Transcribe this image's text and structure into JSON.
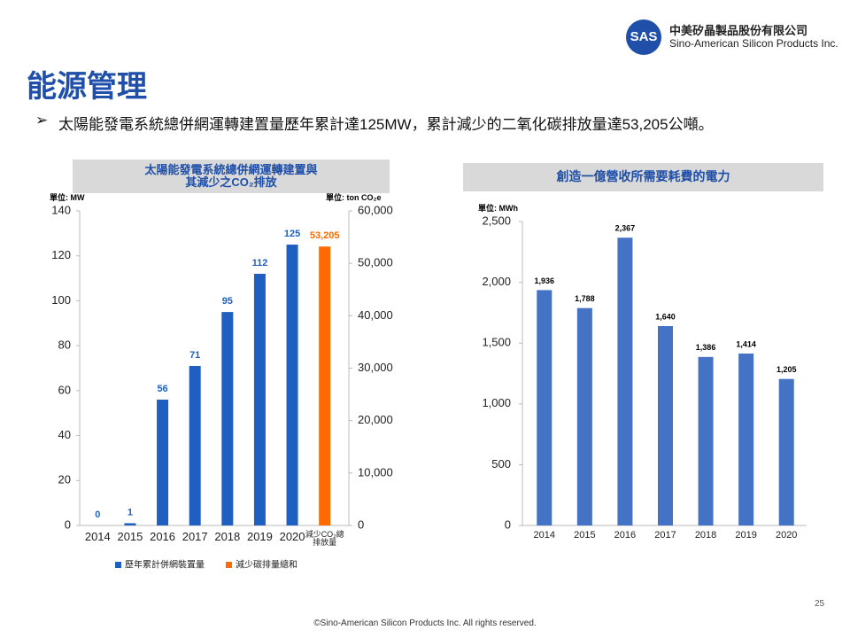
{
  "header": {
    "logo": "SAS",
    "company_zh": "中美矽晶製品股份有限公司",
    "company_en": "Sino-American Silicon Products Inc.",
    "title": "能源管理",
    "bullet": "太陽能發電系統總併網運轉建置量歷年累計達125MW，累計減少的二氧化碳排放量達53,205公噸。"
  },
  "chart_data": [
    {
      "type": "bar",
      "title": [
        "太陽能發電系統總併網運轉建置與",
        "其減少之CO₂排放"
      ],
      "y_unit": "單位: MW",
      "y2_unit": "單位: ton CO₂e",
      "categories": [
        "2014",
        "2015",
        "2016",
        "2017",
        "2018",
        "2019",
        "2020",
        "減少CO₂總排放量"
      ],
      "series": [
        {
          "name": "歷年累計併網裝置量",
          "color": "#1f5fbf",
          "values": [
            0,
            1,
            56,
            71,
            95,
            112,
            125,
            null
          ]
        },
        {
          "name": "減少碳排量總和",
          "color": "#ff6a00",
          "axis": "y2",
          "values": [
            null,
            null,
            null,
            null,
            null,
            null,
            null,
            53205
          ],
          "value_labels": [
            null,
            null,
            null,
            null,
            null,
            null,
            null,
            "53,205"
          ]
        }
      ],
      "ylim": [
        0,
        140
      ],
      "yticks": [
        0,
        20,
        40,
        60,
        80,
        100,
        120,
        140
      ],
      "y2lim": [
        0,
        60000
      ],
      "y2ticks": [
        0,
        {
          "value": 10000,
          "label": "10,000"
        },
        {
          "value": 20000,
          "label": "20,000"
        },
        {
          "value": 30000,
          "label": "30,000"
        },
        {
          "value": 40000,
          "label": "40,000"
        },
        {
          "value": 50000,
          "label": "50,000"
        },
        {
          "value": 60000,
          "label": "60,000"
        }
      ],
      "legend": "bottom",
      "grid": false
    },
    {
      "type": "bar",
      "title": [
        "創造一億營收所需要耗費的電力"
      ],
      "y_unit": "單位: MWh",
      "categories": [
        "2014",
        "2015",
        "2016",
        "2017",
        "2018",
        "2019",
        "2020"
      ],
      "series": [
        {
          "color": "#4472c4",
          "values": [
            1936,
            1788,
            2367,
            1640,
            1386,
            1414,
            1205
          ],
          "value_labels": [
            "1,936",
            "1,788",
            "2,367",
            "1,640",
            "1,386",
            "1,414",
            "1,205"
          ]
        }
      ],
      "ylim": [
        0,
        2500
      ],
      "yticks": [
        0,
        500,
        {
          "value": 1000,
          "label": "1,000"
        },
        {
          "value": 1500,
          "label": "1,500"
        },
        {
          "value": 2000,
          "label": "2,000"
        },
        {
          "value": 2500,
          "label": "2,500"
        }
      ],
      "grid": false
    }
  ],
  "footer": {
    "page": "25",
    "copyright": "©Sino-American Silicon Products Inc.  All rights reserved."
  }
}
